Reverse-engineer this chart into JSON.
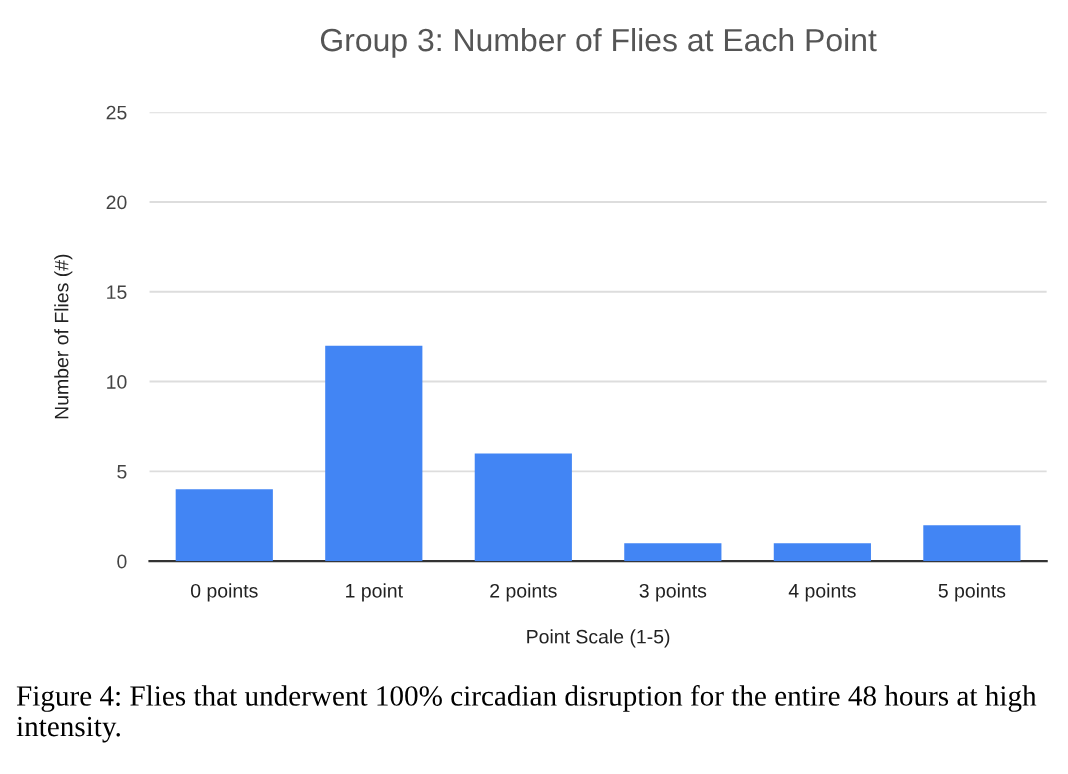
{
  "chart_data": {
    "type": "bar",
    "title": "Group 3: Number of Flies at Each Point",
    "xlabel": "Point Scale (1-5)",
    "ylabel": "Number of Flies (#)",
    "categories": [
      "0 points",
      "1 point",
      "2 points",
      "3 points",
      "4 points",
      "5 points"
    ],
    "values": [
      4,
      12,
      6,
      1,
      1,
      2
    ],
    "color": "#4285f4",
    "ylim": [
      0,
      25
    ],
    "yticks": [
      0,
      5,
      10,
      15,
      20,
      25
    ],
    "grid": "y",
    "legend": false,
    "annotations": [
      "Figure 4: Flies that underwent 100% circadian disruption for the entire 48 hours at high intensity."
    ]
  }
}
